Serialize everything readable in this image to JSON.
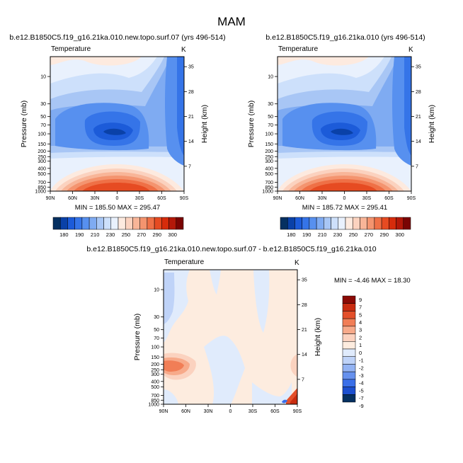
{
  "figure": {
    "title": "MAM"
  },
  "palette": {
    "abs": [
      "#053061",
      "#0a41a8",
      "#1c5bd9",
      "#3574e8",
      "#5790ef",
      "#7fabf2",
      "#a8c6f5",
      "#cde0fb",
      "#e9f1fd",
      "#fdeadf",
      "#fbd2bf",
      "#f8b598",
      "#f4946f",
      "#ef7046",
      "#e64b22",
      "#d62c0c",
      "#b31809",
      "#7a0403"
    ],
    "diff": [
      "#053061",
      "#1c4fcf",
      "#3a6fe8",
      "#6691ee",
      "#93b3f3",
      "#bfd3f8",
      "#e0ebfc",
      "#fdecdf",
      "#fbd2bf",
      "#f7aa8a",
      "#f17e56",
      "#e34f2a",
      "#c92c10",
      "#8b0a05"
    ]
  },
  "chart_data": [
    {
      "type": "heatmap",
      "panel": "top-left",
      "title": "b.e12.B1850C5.f19_g16.21ka.010.new.topo.surf.07 (yrs 496-514)",
      "field_label": "Temperature",
      "units": "K",
      "ylabel": "Pressure (mb)",
      "y2label": "Height (km)",
      "x_ticks": [
        "90N",
        "60N",
        "30N",
        "0",
        "30S",
        "60S",
        "90S"
      ],
      "y_ticks": [
        "10",
        "30",
        "50",
        "70",
        "100",
        "150",
        "200",
        "250",
        "300",
        "400",
        "500",
        "700",
        "850",
        "1000"
      ],
      "y2_ticks": [
        "35",
        "28",
        "21",
        "14",
        "7"
      ],
      "stats": "MIN = 185.50  MAX = 295.47",
      "min": 185.5,
      "max": 295.47,
      "colorbar_levels": [
        "180",
        "190",
        "200",
        "210",
        "220",
        "230",
        "240",
        "250",
        "260",
        "270",
        "280",
        "290",
        "300"
      ],
      "colorbar_labels": [
        "180",
        "190",
        "210",
        "230",
        "250",
        "270",
        "290",
        "300"
      ]
    },
    {
      "type": "heatmap",
      "panel": "top-right",
      "title": "b.e12.B1850C5.f19_g16.21ka.010 (yrs 496-514)",
      "field_label": "Temperature",
      "units": "K",
      "ylabel": "Pressure (mb)",
      "y2label": "Height (km)",
      "x_ticks": [
        "90N",
        "60N",
        "30N",
        "0",
        "30S",
        "60S",
        "90S"
      ],
      "y_ticks": [
        "10",
        "30",
        "50",
        "70",
        "100",
        "150",
        "200",
        "250",
        "300",
        "400",
        "500",
        "700",
        "850",
        "1000"
      ],
      "y2_ticks": [
        "35",
        "28",
        "21",
        "14",
        "7"
      ],
      "stats": "MIN = 185.72  MAX = 295.41",
      "min": 185.72,
      "max": 295.41,
      "colorbar_levels": [
        "180",
        "190",
        "200",
        "210",
        "220",
        "230",
        "240",
        "250",
        "260",
        "270",
        "280",
        "290",
        "300"
      ],
      "colorbar_labels": [
        "180",
        "190",
        "210",
        "230",
        "250",
        "270",
        "290",
        "300"
      ]
    },
    {
      "type": "heatmap",
      "panel": "bottom",
      "title": "b.e12.B1850C5.f19_g16.21ka.010.new.topo.surf.07 - b.e12.B1850C5.f19_g16.21ka.010",
      "field_label": "Temperature",
      "units": "K",
      "ylabel": "Pressure (mb)",
      "y2label": "Height (km)",
      "x_ticks": [
        "90N",
        "60N",
        "30N",
        "0",
        "30S",
        "60S",
        "90S"
      ],
      "y_ticks": [
        "10",
        "30",
        "50",
        "70",
        "100",
        "150",
        "200",
        "250",
        "300",
        "400",
        "500",
        "700",
        "850",
        "1000"
      ],
      "y2_ticks": [
        "35",
        "28",
        "21",
        "14",
        "7"
      ],
      "stats": "MIN = -4.46  MAX = 18.30",
      "min": -4.46,
      "max": 18.3,
      "colorbar_labels": [
        "9",
        "7",
        "5",
        "4",
        "3",
        "2",
        "1",
        "0",
        "-1",
        "-2",
        "-3",
        "-4",
        "-5",
        "-7",
        "-9"
      ]
    }
  ]
}
